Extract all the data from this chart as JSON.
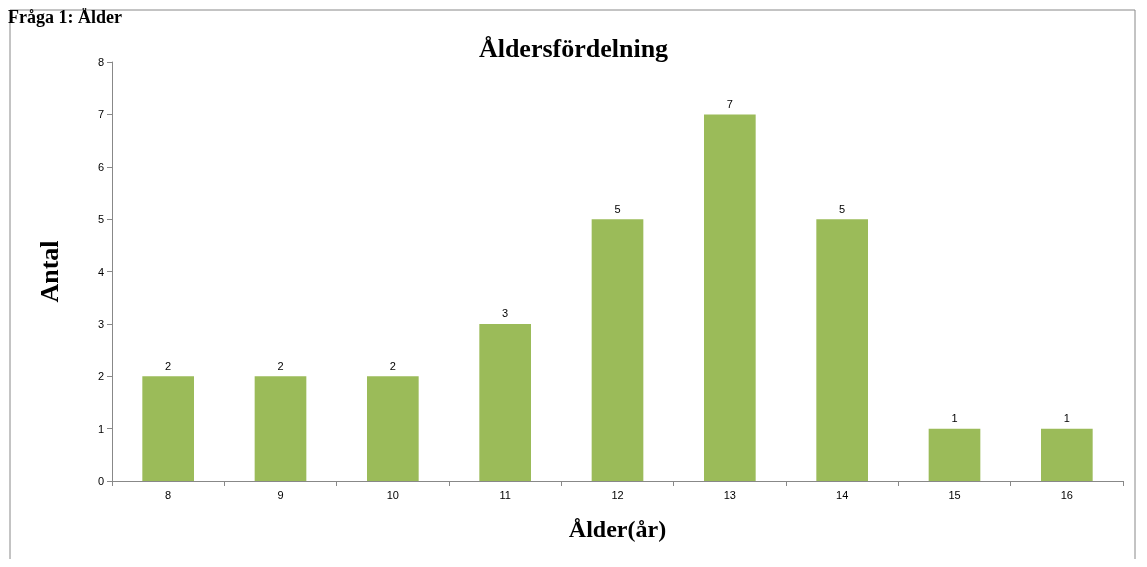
{
  "chart_data": {
    "type": "bar",
    "title": "Åldersfördelning",
    "xlabel": "Ålder(år)",
    "ylabel": "Antal",
    "annotations": [
      "Fråga 1: Ålder"
    ],
    "categories": [
      "8",
      "9",
      "10",
      "11",
      "12",
      "13",
      "14",
      "15",
      "16"
    ],
    "values": [
      2,
      2,
      2,
      3,
      5,
      7,
      5,
      1,
      1
    ],
    "color": "#9bbb59",
    "ylim": [
      0,
      8
    ],
    "yticks": [
      0,
      1,
      2,
      3,
      4,
      5,
      6,
      7,
      8
    ],
    "grid": false,
    "data_labels": true
  }
}
